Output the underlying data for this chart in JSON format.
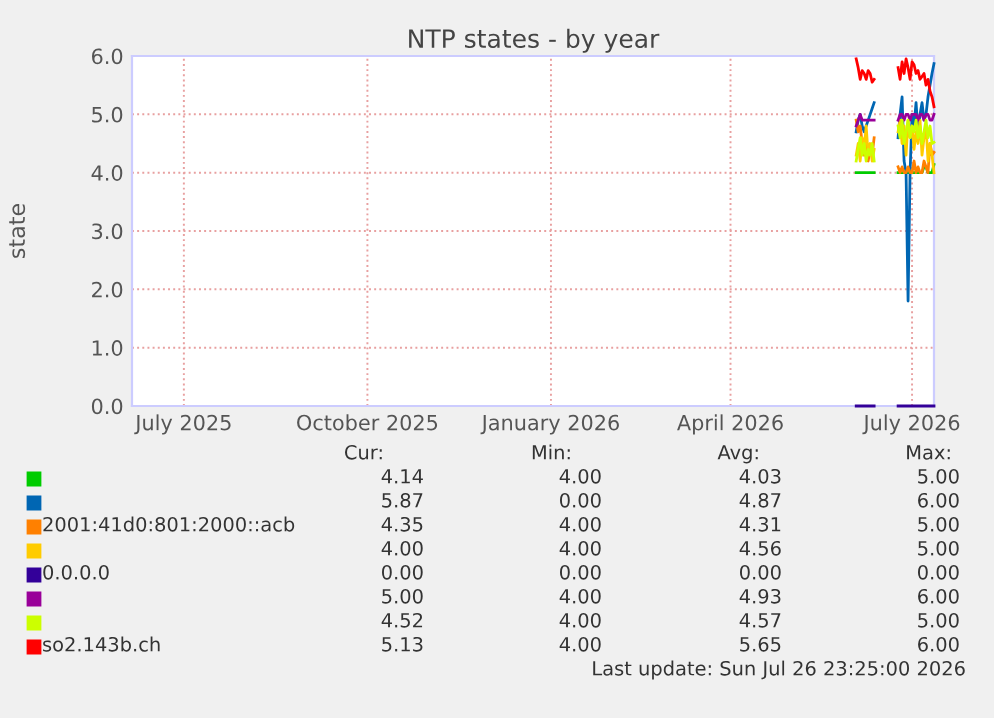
{
  "chart_data": {
    "type": "line",
    "title": "NTP states - by year",
    "ylabel": "state",
    "x": [
      "2026-06-03",
      "2026-06-04",
      "2026-06-05",
      "2026-06-06",
      "2026-06-07",
      "2026-06-08",
      "2026-06-09",
      "2026-06-10",
      "2026-06-11",
      "2026-06-12",
      "2026-06-18",
      "2026-06-24",
      "2026-06-25",
      "2026-06-26",
      "2026-06-27",
      "2026-06-28",
      "2026-06-29",
      "2026-06-30",
      "2026-07-01",
      "2026-07-02",
      "2026-07-03",
      "2026-07-04",
      "2026-07-05",
      "2026-07-06",
      "2026-07-07",
      "2026-07-08",
      "2026-07-09",
      "2026-07-10",
      "2026-07-11",
      "2026-07-12"
    ],
    "series": [
      {
        "color": "#00cc00",
        "values": [
          4.0,
          4.0,
          4.0,
          4.0,
          4.0,
          4.0,
          4.0,
          4.0,
          4.0,
          4.0,
          null,
          4.0,
          4.0,
          4.0,
          4.0,
          4.0,
          4.0,
          4.0,
          4.0,
          4.0,
          4.0,
          4.0,
          4.0,
          4.0,
          4.1,
          4.1,
          4.0,
          4.0,
          4.0,
          4.14
        ]
      },
      {
        "color": "#0066b3",
        "values": [
          4.7,
          4.9,
          5.0,
          4.8,
          4.7,
          4.8,
          4.9,
          5.0,
          5.1,
          5.2,
          null,
          4.6,
          5.0,
          5.3,
          4.2,
          4.0,
          1.8,
          4.0,
          5.0,
          4.8,
          5.2,
          4.7,
          5.0,
          5.2,
          4.9,
          5.0,
          5.3,
          5.5,
          5.7,
          5.87
        ]
      },
      {
        "name": "2001:41d0:801:2000::acb",
        "color": "#ff8000",
        "values": [
          4.9,
          4.7,
          4.8,
          4.5,
          4.3,
          4.6,
          4.2,
          4.4,
          4.3,
          4.6,
          null,
          4.1,
          4.0,
          4.1,
          4.0,
          4.0,
          4.1,
          4.0,
          4.0,
          4.2,
          4.0,
          4.1,
          4.0,
          4.0,
          4.2,
          4.1,
          4.0,
          4.5,
          4.3,
          4.35
        ]
      },
      {
        "color": "#ffcc00",
        "values": [
          4.3,
          4.5,
          4.2,
          4.6,
          4.4,
          4.8,
          4.3,
          4.5,
          4.2,
          4.4,
          null,
          4.7,
          4.9,
          4.5,
          4.8,
          4.3,
          4.9,
          4.6,
          4.8,
          4.4,
          4.7,
          4.5,
          4.9,
          4.3,
          4.6,
          4.8,
          4.2,
          4.5,
          4.3,
          4.0
        ]
      },
      {
        "name": "0.0.0.0",
        "color": "#330099",
        "values": [
          0.0,
          0.0,
          0.0,
          0.0,
          0.0,
          0.0,
          0.0,
          0.0,
          0.0,
          0.0,
          null,
          0.0,
          0.0,
          0.0,
          0.0,
          0.0,
          0.0,
          0.0,
          0.0,
          0.0,
          0.0,
          0.0,
          0.0,
          0.0,
          0.0,
          0.0,
          0.0,
          0.0,
          0.0,
          0.0
        ]
      },
      {
        "color": "#990099",
        "values": [
          4.8,
          4.9,
          5.0,
          4.9,
          4.9,
          4.9,
          4.9,
          4.9,
          4.9,
          4.9,
          null,
          4.9,
          5.0,
          5.0,
          4.9,
          5.0,
          5.0,
          4.9,
          5.0,
          5.0,
          5.0,
          4.9,
          5.0,
          5.0,
          4.9,
          5.0,
          5.0,
          4.9,
          4.9,
          5.0
        ]
      },
      {
        "color": "#ccff00",
        "values": [
          4.2,
          4.4,
          4.6,
          4.3,
          4.5,
          4.2,
          4.4,
          4.3,
          4.5,
          4.2,
          null,
          4.8,
          4.6,
          4.9,
          4.5,
          4.7,
          4.9,
          4.6,
          4.8,
          4.7,
          4.9,
          4.6,
          4.8,
          4.5,
          4.7,
          4.9,
          4.6,
          4.8,
          4.5,
          4.52
        ]
      },
      {
        "name": "so2.143b.ch",
        "color": "#ff0000",
        "values": [
          5.95,
          5.8,
          5.6,
          5.75,
          5.7,
          5.6,
          5.75,
          5.7,
          5.55,
          5.6,
          null,
          5.8,
          5.6,
          5.9,
          5.7,
          5.95,
          5.8,
          5.6,
          5.9,
          5.85,
          5.7,
          5.75,
          5.6,
          5.65,
          5.7,
          5.5,
          5.6,
          5.4,
          5.3,
          5.13
        ]
      }
    ],
    "xlim": [
      "2025-06-05",
      "2026-07-12"
    ],
    "xticks": [
      {
        "value": "2025-07-01",
        "label": "July 2025"
      },
      {
        "value": "2025-10-01",
        "label": "October 2025"
      },
      {
        "value": "2026-01-01",
        "label": "January 2026"
      },
      {
        "value": "2026-04-01",
        "label": "April 2026"
      },
      {
        "value": "2026-07-01",
        "label": "July 2026"
      }
    ],
    "ylim": [
      0,
      6
    ],
    "yticks": [
      {
        "value": 0,
        "label": "0.0"
      },
      {
        "value": 1,
        "label": "1.0"
      },
      {
        "value": 2,
        "label": "2.0"
      },
      {
        "value": 3,
        "label": "3.0"
      },
      {
        "value": 4,
        "label": "4.0"
      },
      {
        "value": 5,
        "label": "5.0"
      },
      {
        "value": 6,
        "label": "6.0"
      }
    ],
    "grid": true,
    "legend": "bottom",
    "marker": "none",
    "line_style": "solid",
    "annotations": [
      "Cur:",
      "Min:",
      "Avg:",
      "Max:",
      "4.14",
      "4.00",
      "4.03",
      "5.00",
      "5.87",
      "0.00",
      "4.87",
      "6.00",
      "4.35",
      "4.00",
      "4.31",
      "5.00",
      "4.00",
      "4.00",
      "4.56",
      "5.00",
      "0.00",
      "0.00",
      "0.00",
      "0.00",
      "5.00",
      "4.00",
      "4.93",
      "6.00",
      "4.52",
      "4.00",
      "4.57",
      "5.00",
      "5.13",
      "4.00",
      "5.65",
      "6.00",
      "Last update: Sun Jul 26 23:25:00 2026"
    ]
  }
}
